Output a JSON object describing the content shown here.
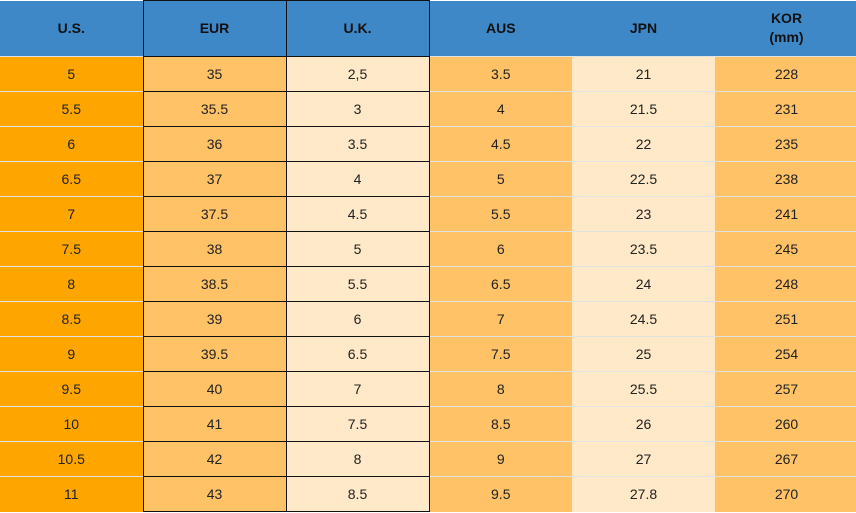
{
  "headers": [
    "U.S.",
    "EUR",
    "U.K.",
    "AUS",
    "JPN",
    "KOR",
    "(mm)"
  ],
  "colors": {
    "header": "#3f88c8",
    "us": "#ffa500",
    "eur": "#ffc266",
    "uk": "#ffe9c8",
    "aus": "#ffc266",
    "jpn": "#ffe9c8",
    "kor": "#ffc266"
  },
  "rows": [
    [
      "5",
      "35",
      "2,5",
      "3.5",
      "21",
      "228"
    ],
    [
      "5.5",
      "35.5",
      "3",
      "4",
      "21.5",
      "231"
    ],
    [
      "6",
      "36",
      "3.5",
      "4.5",
      "22",
      "235"
    ],
    [
      "6.5",
      "37",
      "4",
      "5",
      "22.5",
      "238"
    ],
    [
      "7",
      "37.5",
      "4.5",
      "5.5",
      "23",
      "241"
    ],
    [
      "7.5",
      "38",
      "5",
      "6",
      "23.5",
      "245"
    ],
    [
      "8",
      "38.5",
      "5.5",
      "6.5",
      "24",
      "248"
    ],
    [
      "8.5",
      "39",
      "6",
      "7",
      "24.5",
      "251"
    ],
    [
      "9",
      "39.5",
      "6.5",
      "7.5",
      "25",
      "254"
    ],
    [
      "9.5",
      "40",
      "7",
      "8",
      "25.5",
      "257"
    ],
    [
      "10",
      "41",
      "7.5",
      "8.5",
      "26",
      "260"
    ],
    [
      "10.5",
      "42",
      "8",
      "9",
      "27",
      "267"
    ],
    [
      "11",
      "43",
      "8.5",
      "9.5",
      "27.8",
      "270"
    ]
  ]
}
